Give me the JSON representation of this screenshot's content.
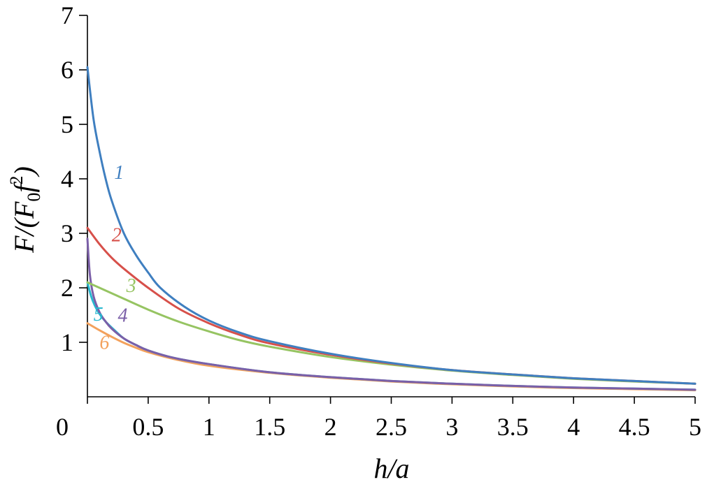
{
  "chart_data": {
    "type": "line",
    "title": "",
    "xlabel": "h/a",
    "ylabel": "F/(F0f2)",
    "xlim": [
      0,
      5
    ],
    "ylim": [
      0,
      7
    ],
    "x_ticks": [
      {
        "value": 0,
        "label": "0"
      },
      {
        "value": 0.5,
        "label": "0.5"
      },
      {
        "value": 1,
        "label": "1"
      },
      {
        "value": 1.5,
        "label": "1.5"
      },
      {
        "value": 2,
        "label": "2"
      },
      {
        "value": 2.5,
        "label": "2.5"
      },
      {
        "value": 3,
        "label": "3"
      },
      {
        "value": 3.5,
        "label": "3.5"
      },
      {
        "value": 4,
        "label": "4"
      },
      {
        "value": 4.5,
        "label": "4.5"
      },
      {
        "value": 5,
        "label": "5"
      }
    ],
    "y_ticks": [
      {
        "value": 1,
        "label": "1"
      },
      {
        "value": 2,
        "label": "2"
      },
      {
        "value": 3,
        "label": "3"
      },
      {
        "value": 4,
        "label": "4"
      },
      {
        "value": 5,
        "label": "5"
      },
      {
        "value": 6,
        "label": "6"
      },
      {
        "value": 7,
        "label": "7"
      }
    ],
    "grid": false,
    "series": [
      {
        "name": "1",
        "color": "#3f7fc0",
        "label_at": [
          0.22,
          4.0
        ],
        "x": [
          0,
          0.05,
          0.1,
          0.15,
          0.2,
          0.3,
          0.4,
          0.5,
          0.6,
          0.8,
          1.0,
          1.25,
          1.5,
          2.0,
          2.5,
          3.0,
          3.5,
          4.0,
          4.5,
          5.0
        ],
        "y": [
          6.05,
          5.1,
          4.5,
          4.0,
          3.6,
          3.0,
          2.6,
          2.28,
          2.0,
          1.65,
          1.4,
          1.18,
          1.02,
          0.79,
          0.62,
          0.49,
          0.41,
          0.34,
          0.29,
          0.24
        ]
      },
      {
        "name": "2",
        "color": "#d7504a",
        "label_at": [
          0.2,
          2.85
        ],
        "x": [
          0,
          0.1,
          0.2,
          0.3,
          0.5,
          0.75,
          1.0,
          1.25,
          1.5,
          2.0,
          2.5,
          3.0,
          3.5,
          4.0,
          4.5,
          5.0
        ],
        "y": [
          3.1,
          2.8,
          2.55,
          2.35,
          2.0,
          1.62,
          1.35,
          1.14,
          0.98,
          0.77,
          0.61,
          0.49,
          0.41,
          0.34,
          0.29,
          0.24
        ]
      },
      {
        "name": "3",
        "color": "#96c462",
        "label_at": [
          0.32,
          1.92
        ],
        "x": [
          0,
          0.1,
          0.25,
          0.5,
          0.75,
          1.0,
          1.25,
          1.5,
          2.0,
          2.5,
          3.0,
          3.5,
          4.0,
          4.5,
          5.0
        ],
        "y": [
          2.1,
          2.0,
          1.85,
          1.6,
          1.38,
          1.2,
          1.04,
          0.92,
          0.73,
          0.59,
          0.48,
          0.4,
          0.33,
          0.28,
          0.24
        ]
      },
      {
        "name": "4",
        "color": "#7b5fa8",
        "label_at": [
          0.25,
          1.38
        ],
        "x": [
          0,
          0.02,
          0.05,
          0.1,
          0.15,
          0.2,
          0.3,
          0.4,
          0.5,
          0.7,
          1.0,
          1.5,
          2.0,
          2.5,
          3.0,
          3.5,
          4.0,
          4.5,
          5.0
        ],
        "y": [
          2.9,
          2.25,
          1.85,
          1.55,
          1.38,
          1.25,
          1.07,
          0.95,
          0.85,
          0.72,
          0.6,
          0.45,
          0.36,
          0.29,
          0.24,
          0.2,
          0.17,
          0.15,
          0.13
        ]
      },
      {
        "name": "5",
        "color": "#27b7cf",
        "label_at": [
          0.05,
          1.4
        ],
        "x": [
          0,
          0.03,
          0.06,
          0.1,
          0.15,
          0.2,
          0.3,
          0.4,
          0.5,
          0.7,
          1.0,
          1.5,
          2.0,
          2.5,
          3.0,
          3.5,
          4.0,
          4.5,
          5.0
        ],
        "y": [
          2.1,
          1.85,
          1.68,
          1.52,
          1.38,
          1.27,
          1.07,
          0.95,
          0.85,
          0.72,
          0.6,
          0.45,
          0.36,
          0.29,
          0.24,
          0.2,
          0.17,
          0.15,
          0.13
        ]
      },
      {
        "name": "6",
        "color": "#f3a15c",
        "label_at": [
          0.1,
          0.88
        ],
        "x": [
          0,
          0.1,
          0.2,
          0.3,
          0.4,
          0.5,
          0.7,
          1.0,
          1.5,
          2.0,
          2.5,
          3.0,
          3.5,
          4.0,
          4.5,
          5.0
        ],
        "y": [
          1.35,
          1.22,
          1.1,
          0.99,
          0.9,
          0.82,
          0.7,
          0.57,
          0.44,
          0.35,
          0.28,
          0.23,
          0.19,
          0.16,
          0.14,
          0.12
        ]
      }
    ]
  }
}
